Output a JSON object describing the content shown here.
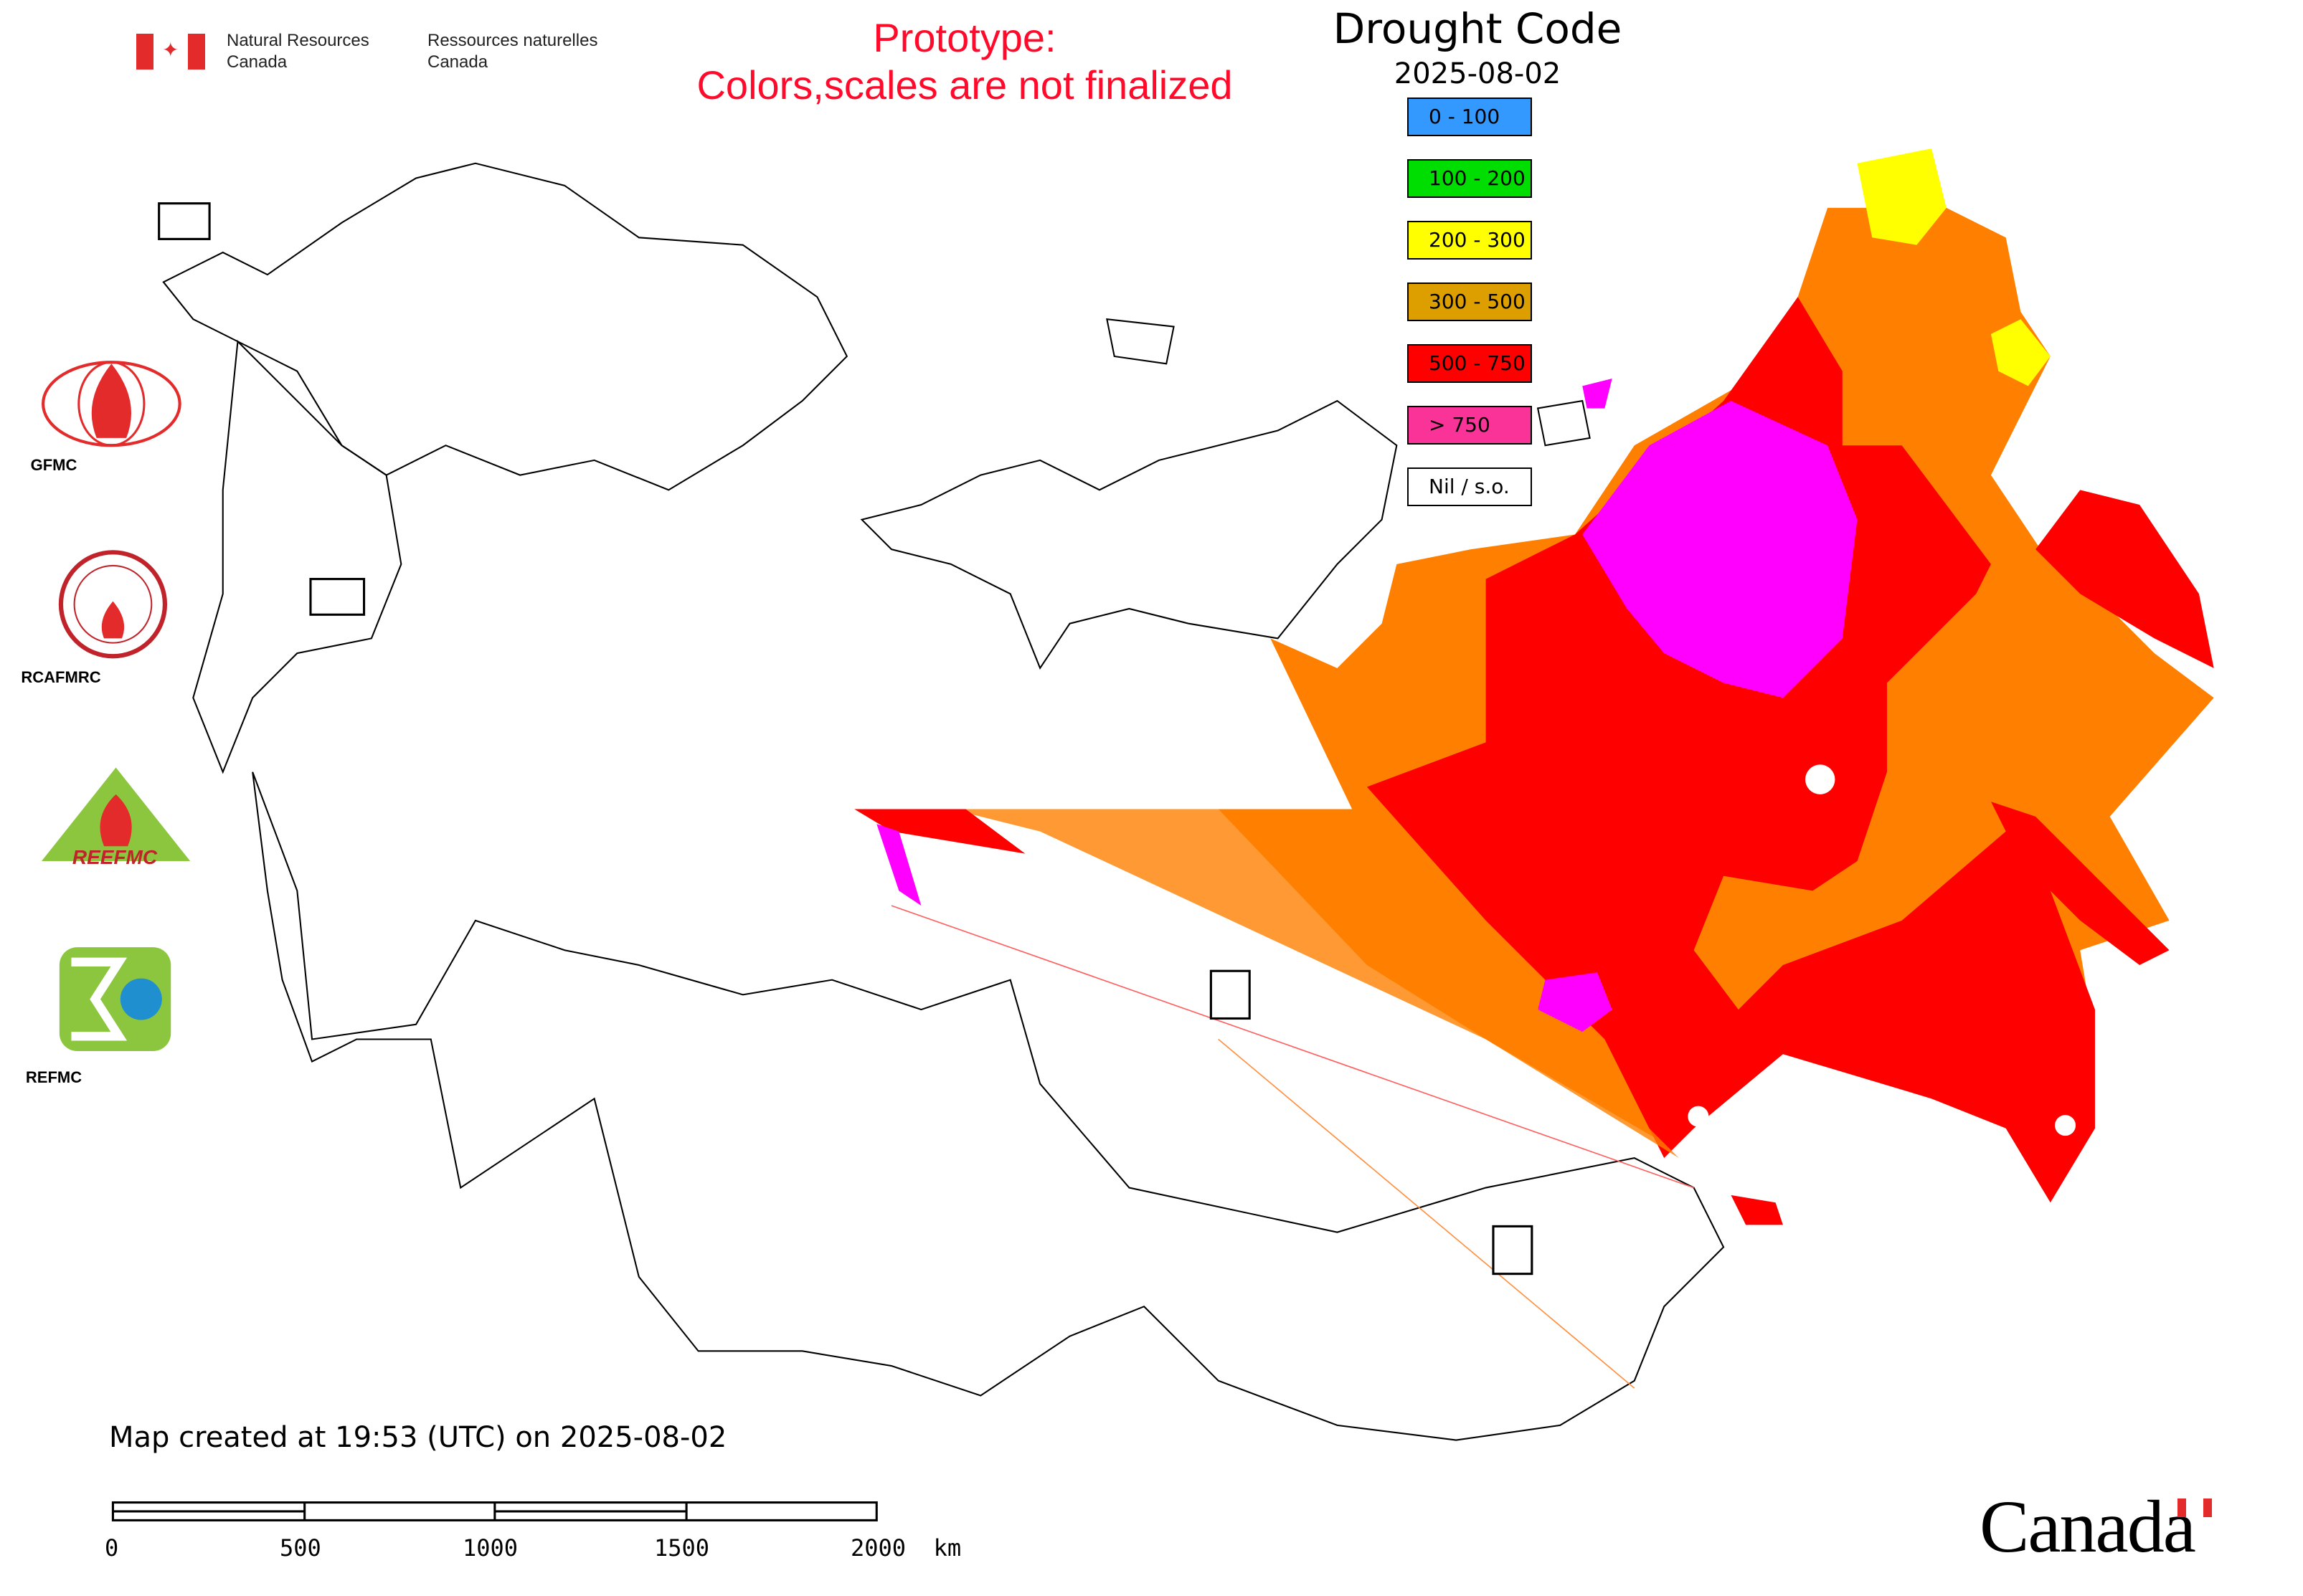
{
  "header": {
    "department_en": [
      "Natural Resources",
      "Canada"
    ],
    "department_fr": [
      "Ressources naturelles",
      "Canada"
    ],
    "prototype_line1": "Prototype:",
    "prototype_line2": "Colors,scales are not finalized",
    "prototype_color": "#ff0a2a"
  },
  "map": {
    "title": "Drought Code",
    "date": "2025-08-02",
    "legend": [
      {
        "label": "0 - 100",
        "color": "#3399ff"
      },
      {
        "label": "100 - 200",
        "color": "#00dd00"
      },
      {
        "label": "200 - 300",
        "color": "#ffff00"
      },
      {
        "label": "300 - 500",
        "color": "#dd9e00"
      },
      {
        "label": "500 - 750",
        "color": "#ff0000"
      },
      {
        "label": "> 750",
        "color": "#fa3399"
      },
      {
        "label": "Nil / s.o.",
        "color": "#ffffff"
      }
    ],
    "data_colors": {
      "orange": "#ff8000",
      "red": "#ff0000",
      "magenta": "#ff00ff",
      "yellow": "#ffff00"
    }
  },
  "logos": [
    {
      "label": "GFMC",
      "icon": "gfmc-globe-fire-icon"
    },
    {
      "label": "RCAFMRC",
      "icon": "rcafmrc-seal-icon"
    },
    {
      "label": "REEFMC",
      "icon": "reefmc-triangle-icon"
    },
    {
      "label": "REFMC",
      "icon": "refmc-sigma-icon"
    }
  ],
  "footer": {
    "created": "Map created at 19:53 (UTC) on 2025-08-02",
    "scale_labels": [
      "0",
      "500",
      "1000",
      "1500",
      "2000  km"
    ],
    "wordmark": "Canada"
  }
}
